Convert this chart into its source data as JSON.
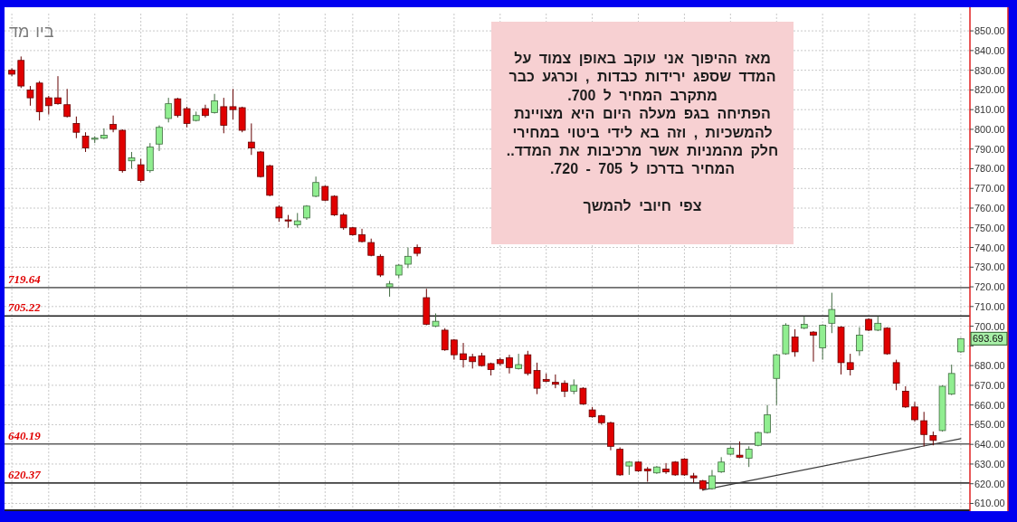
{
  "chart_data": {
    "type": "candlestick",
    "title": "ביו מד",
    "categories": [
      null,
      null,
      null,
      null,
      null,
      null,
      null,
      null,
      null,
      null,
      null,
      null,
      null,
      null,
      null,
      null,
      null,
      null,
      null,
      null,
      null,
      null,
      null,
      null,
      null,
      null,
      null,
      null,
      null,
      null,
      null,
      null,
      null,
      null,
      null,
      null,
      null,
      null,
      null,
      null,
      null,
      null,
      null,
      null,
      null,
      null,
      null,
      null,
      null,
      null,
      null,
      null,
      null,
      null,
      null,
      null,
      null,
      null,
      null,
      null,
      null,
      null,
      null,
      null,
      null,
      null,
      null,
      null,
      null,
      null,
      null,
      null,
      null,
      null,
      null,
      null,
      null,
      null,
      null,
      null,
      null,
      null,
      null,
      null,
      null,
      null,
      null,
      null,
      null,
      null,
      null,
      null,
      null,
      null,
      null,
      null,
      null,
      null,
      null,
      null,
      null,
      null,
      null,
      null
    ],
    "ohlc": [
      [
        830,
        831,
        827,
        828
      ],
      [
        835,
        837,
        821,
        822
      ],
      [
        820,
        822,
        812,
        816
      ],
      [
        823.5,
        824.5,
        804.5,
        809
      ],
      [
        816,
        817,
        807.5,
        812
      ],
      [
        816,
        827,
        812.5,
        813
      ],
      [
        812.5,
        820.5,
        806,
        806.5
      ],
      [
        803,
        806.5,
        795.5,
        798.5
      ],
      [
        796.5,
        798.5,
        788.5,
        790.5
      ],
      [
        795,
        796.5,
        793,
        795.5
      ],
      [
        795.5,
        800.5,
        795,
        797
      ],
      [
        802.5,
        807,
        798.5,
        800
      ],
      [
        799.5,
        800,
        778,
        779
      ],
      [
        784,
        788.5,
        780,
        785.5
      ],
      [
        782,
        785,
        773,
        774
      ],
      [
        779,
        793,
        778,
        791
      ],
      [
        792.5,
        802,
        789,
        801
      ],
      [
        805.5,
        816,
        803.5,
        813
      ],
      [
        815.5,
        816,
        806,
        807
      ],
      [
        810.5,
        811.5,
        801,
        803
      ],
      [
        804.5,
        809,
        804,
        807
      ],
      [
        810.5,
        812.5,
        806,
        807
      ],
      [
        808.5,
        818,
        808,
        814.5
      ],
      [
        811.5,
        816,
        798,
        802
      ],
      [
        811.5,
        820.5,
        805,
        810
      ],
      [
        811,
        811.5,
        798.5,
        799.5
      ],
      [
        793.5,
        803,
        787,
        790.5
      ],
      [
        788.5,
        789,
        775.5,
        776
      ],
      [
        781.5,
        782,
        766,
        766.5
      ],
      [
        760.5,
        761.5,
        753,
        755
      ],
      [
        754,
        756.5,
        750,
        753.5
      ],
      [
        751.5,
        757.5,
        750,
        753.5
      ],
      [
        755,
        761.5,
        754,
        761
      ],
      [
        766,
        776,
        765.5,
        773
      ],
      [
        771,
        771.5,
        763.5,
        764
      ],
      [
        766,
        766.5,
        756,
        756.5
      ],
      [
        756.5,
        757.5,
        749,
        750
      ],
      [
        750,
        750.5,
        746,
        746.5
      ],
      [
        746.5,
        749.5,
        742.5,
        743
      ],
      [
        742.5,
        744.5,
        735.5,
        736
      ],
      [
        735.5,
        736.5,
        725,
        726
      ],
      [
        720,
        723,
        715,
        721.5
      ],
      [
        726,
        731.5,
        724.5,
        731
      ],
      [
        731.5,
        740,
        729.5,
        735.5
      ],
      [
        740,
        741.5,
        735.5,
        737
      ],
      [
        714.5,
        719,
        700.5,
        701
      ],
      [
        700,
        706.5,
        699.5,
        702.5
      ],
      [
        698,
        699,
        687.5,
        688
      ],
      [
        693,
        693.5,
        683,
        685.5
      ],
      [
        686,
        691.5,
        679,
        683
      ],
      [
        684.5,
        686,
        678.5,
        682
      ],
      [
        685,
        686.5,
        679.5,
        680
      ],
      [
        681,
        681.5,
        675,
        678
      ],
      [
        683,
        684,
        680,
        681
      ],
      [
        684,
        685.5,
        676,
        679
      ],
      [
        678.5,
        686,
        678,
        680.5
      ],
      [
        685.5,
        687.5,
        675,
        676
      ],
      [
        677.5,
        681.5,
        665.5,
        668.5
      ],
      [
        673,
        676,
        671.5,
        672
      ],
      [
        671.5,
        675.5,
        668.5,
        670.5
      ],
      [
        671,
        672.5,
        664,
        667
      ],
      [
        667,
        673,
        665.5,
        670
      ],
      [
        668.5,
        669,
        660,
        660.5
      ],
      [
        657.5,
        659,
        653.5,
        654
      ],
      [
        654.5,
        655,
        650,
        651
      ],
      [
        651,
        651.5,
        637,
        639
      ],
      [
        637.5,
        638.5,
        624,
        624.5
      ],
      [
        629,
        631.5,
        624.5,
        631
      ],
      [
        631,
        631.5,
        626,
        626.5
      ],
      [
        627.5,
        628.5,
        621,
        626.5
      ],
      [
        625.5,
        629,
        625,
        628.5
      ],
      [
        627.5,
        630.5,
        625,
        626
      ],
      [
        631,
        631.5,
        624,
        624.5
      ],
      [
        632.5,
        633,
        624,
        624.5
      ],
      [
        624,
        625.5,
        620.5,
        623
      ],
      [
        621.5,
        622,
        616.5,
        617.5
      ],
      [
        617.5,
        627,
        617,
        624
      ],
      [
        626,
        633.5,
        625.5,
        631
      ],
      [
        635,
        639,
        634.5,
        638
      ],
      [
        634.5,
        641.5,
        633,
        633.5
      ],
      [
        633,
        639,
        628.5,
        637.5
      ],
      [
        639.5,
        646.5,
        639,
        646
      ],
      [
        646,
        660,
        645.5,
        655
      ],
      [
        673.5,
        686,
        660,
        685.5
      ],
      [
        686,
        701.5,
        685.5,
        700.5
      ],
      [
        694.5,
        698.5,
        684.5,
        687
      ],
      [
        699,
        705,
        698.5,
        701
      ],
      [
        697,
        697.5,
        682,
        695.5
      ],
      [
        689,
        701,
        683,
        700.5
      ],
      [
        701.5,
        717,
        696.5,
        708.5
      ],
      [
        699.5,
        700,
        675.5,
        681.5
      ],
      [
        681.5,
        686,
        675,
        678
      ],
      [
        687.5,
        699.5,
        685,
        695.5
      ],
      [
        703.5,
        704,
        697.5,
        698
      ],
      [
        698,
        705,
        697.5,
        701.5
      ],
      [
        699,
        699.5,
        685.5,
        686
      ],
      [
        681.5,
        683,
        667.5,
        671
      ],
      [
        667,
        669.5,
        658.5,
        659
      ],
      [
        659,
        661.5,
        651.5,
        652.5
      ],
      [
        652,
        656.5,
        639,
        645
      ],
      [
        644.5,
        646.5,
        639.5,
        642
      ],
      [
        647,
        670,
        646.5,
        669.5
      ],
      [
        665.5,
        680.5,
        665,
        676
      ],
      [
        687,
        694,
        686.5,
        693.69
      ]
    ],
    "colors": [
      "#e00000",
      "#e00000",
      "#e00000",
      "#e00000",
      "#e00000",
      "#e00000",
      "#e00000",
      "#e00000",
      "#e00000",
      "#90ee90",
      "#90ee90",
      "#e00000",
      "#e00000",
      "#90ee90",
      "#e00000",
      "#90ee90",
      "#90ee90",
      "#90ee90",
      "#e00000",
      "#e00000",
      "#90ee90",
      "#e00000",
      "#90ee90",
      "#e00000",
      "#e00000",
      "#e00000",
      "#e00000",
      "#e00000",
      "#e00000",
      "#e00000",
      "#e00000",
      "#90ee90",
      "#90ee90",
      "#90ee90",
      "#e00000",
      "#e00000",
      "#e00000",
      "#e00000",
      "#e00000",
      "#e00000",
      "#e00000",
      "#90ee90",
      "#90ee90",
      "#90ee90",
      "#e00000",
      "#e00000",
      "#90ee90",
      "#e00000",
      "#e00000",
      "#e00000",
      "#e00000",
      "#e00000",
      "#e00000",
      "#e00000",
      "#e00000",
      "#90ee90",
      "#e00000",
      "#e00000",
      "#e00000",
      "#e00000",
      "#e00000",
      "#90ee90",
      "#e00000",
      "#e00000",
      "#e00000",
      "#e00000",
      "#e00000",
      "#90ee90",
      "#e00000",
      "#e00000",
      "#90ee90",
      "#e00000",
      "#e00000",
      "#e00000",
      "#e00000",
      "#e00000",
      "#90ee90",
      "#90ee90",
      "#90ee90",
      "#e00000",
      "#90ee90",
      "#90ee90",
      "#90ee90",
      "#90ee90",
      "#90ee90",
      "#e00000",
      "#90ee90",
      "#e00000",
      "#90ee90",
      "#90ee90",
      "#e00000",
      "#e00000",
      "#90ee90",
      "#e00000",
      "#90ee90",
      "#e00000",
      "#e00000",
      "#e00000",
      "#e00000",
      "#e00000",
      "#e00000",
      "#90ee90",
      "#90ee90",
      "#90ee90"
    ],
    "series": [
      {
        "type": "line",
        "color": "#3a3a3a",
        "values": [
          null,
          null,
          null,
          null,
          null,
          null,
          null,
          null,
          null,
          null,
          null,
          null,
          null,
          null,
          null,
          null,
          null,
          null,
          null,
          null,
          null,
          null,
          null,
          null,
          null,
          null,
          null,
          null,
          null,
          null,
          null,
          null,
          null,
          null,
          null,
          null,
          null,
          null,
          null,
          null,
          null,
          null,
          null,
          null,
          null,
          null,
          null,
          null,
          null,
          null,
          null,
          null,
          null,
          null,
          null,
          null,
          null,
          null,
          null,
          null,
          null,
          null,
          null,
          null,
          null,
          null,
          null,
          null,
          null,
          null,
          null,
          null,
          null,
          null,
          null,
          616.8,
          null,
          null,
          null,
          null,
          null,
          null,
          null,
          null,
          null,
          null,
          null,
          null,
          null,
          null,
          null,
          null,
          null,
          null,
          null,
          null,
          null,
          null,
          null,
          null,
          null,
          null,
          null,
          642.9
        ]
      }
    ],
    "ylim": [
      607,
      862
    ],
    "yticks": [
      {
        "value": 610,
        "label": "610.00"
      },
      {
        "value": 620,
        "label": "620.00"
      },
      {
        "value": 630,
        "label": "630.00"
      },
      {
        "value": 640,
        "label": "640.00"
      },
      {
        "value": 650,
        "label": "650.00"
      },
      {
        "value": 660,
        "label": "660.00"
      },
      {
        "value": 670,
        "label": "670.00"
      },
      {
        "value": 680,
        "label": "680.00"
      },
      {
        "value": 690,
        "label": null
      },
      {
        "value": 700,
        "label": "700.00"
      },
      {
        "value": 710,
        "label": "710.00"
      },
      {
        "value": 720,
        "label": "720.00"
      },
      {
        "value": 730,
        "label": "730.00"
      },
      {
        "value": 740,
        "label": "740.00"
      },
      {
        "value": 750,
        "label": "750.00"
      },
      {
        "value": 760,
        "label": "760.00"
      },
      {
        "value": 770,
        "label": "770.00"
      },
      {
        "value": 780,
        "label": "780.00"
      },
      {
        "value": 790,
        "label": "790.00"
      },
      {
        "value": 800,
        "label": "800.00"
      },
      {
        "value": 810,
        "label": "810.00"
      },
      {
        "value": 820,
        "label": "820.00"
      },
      {
        "value": 830,
        "label": "830.00"
      },
      {
        "value": 840,
        "label": "840.00"
      },
      {
        "value": 850,
        "label": "850.00"
      }
    ],
    "tick_labels": "y",
    "grid": true,
    "ref_lines": [
      {
        "axis": "y",
        "value": 719.64,
        "label": "719.64",
        "color": "#6e6e6e"
      },
      {
        "axis": "y",
        "value": 705.22,
        "label": "705.22",
        "color": "#1e1e1e"
      },
      {
        "axis": "y",
        "value": 640.19,
        "label": "640.19",
        "color": "#5e5e5e"
      },
      {
        "axis": "y",
        "value": 620.37,
        "label": "620.37",
        "color": "#3e3e3e"
      }
    ],
    "annotations": [
      "מאז ההיפוך אני עוקב באופן צמוד על\nהמדד שספג ירידות כבדות , וכרגע כבר\nמתקרב המחיר ל 700.\nהפתיחה בגפ מעלה היום היא מצויינת\nלהמשכיות , וזה בא לידי ביטוי במחירי\nחלק מהמניות אשר מרכיבות את המדד..\nהמחיר בדרכו ל 705 - 720.\n\nצפי חיובי להמשך",
      "693.69"
    ]
  }
}
